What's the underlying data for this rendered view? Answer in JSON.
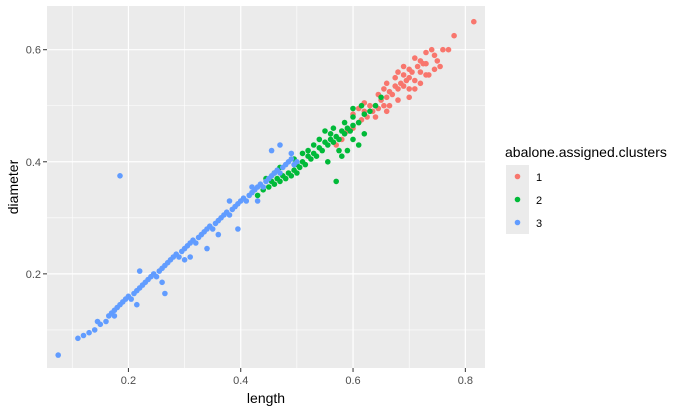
{
  "chart_data": {
    "type": "scatter",
    "title": "",
    "xlabel": "length",
    "ylabel": "diameter",
    "xlim": [
      0.055,
      0.835
    ],
    "ylim": [
      0.032,
      0.678
    ],
    "x_ticks": [
      0.2,
      0.4,
      0.6,
      0.8
    ],
    "x_tick_labels": [
      "0.2",
      "0.4",
      "0.6",
      "0.8"
    ],
    "y_ticks": [
      0.2,
      0.4,
      0.6
    ],
    "y_tick_labels": [
      "0.2",
      "0.4",
      "0.6"
    ],
    "grid": true,
    "panel_background": "#ebebeb",
    "legend": {
      "title": "abalone.assigned.clusters",
      "position": "right",
      "entries": [
        {
          "label": "1",
          "color": "#f8766d"
        },
        {
          "label": "2",
          "color": "#00ba38"
        },
        {
          "label": "3",
          "color": "#619cff"
        }
      ]
    },
    "series": [
      {
        "name": "1",
        "color": "#f8766d",
        "points": [
          [
            0.815,
            0.65
          ],
          [
            0.78,
            0.625
          ],
          [
            0.77,
            0.6
          ],
          [
            0.745,
            0.59
          ],
          [
            0.745,
            0.565
          ],
          [
            0.73,
            0.575
          ],
          [
            0.73,
            0.555
          ],
          [
            0.72,
            0.58
          ],
          [
            0.72,
            0.56
          ],
          [
            0.715,
            0.57
          ],
          [
            0.71,
            0.545
          ],
          [
            0.705,
            0.56
          ],
          [
            0.7,
            0.55
          ],
          [
            0.7,
            0.53
          ],
          [
            0.695,
            0.545
          ],
          [
            0.69,
            0.555
          ],
          [
            0.69,
            0.535
          ],
          [
            0.685,
            0.54
          ],
          [
            0.68,
            0.53
          ],
          [
            0.68,
            0.51
          ],
          [
            0.675,
            0.535
          ],
          [
            0.67,
            0.52
          ],
          [
            0.665,
            0.525
          ],
          [
            0.665,
            0.5
          ],
          [
            0.66,
            0.515
          ],
          [
            0.655,
            0.5
          ],
          [
            0.65,
            0.51
          ],
          [
            0.645,
            0.495
          ],
          [
            0.64,
            0.5
          ],
          [
            0.64,
            0.48
          ],
          [
            0.635,
            0.49
          ],
          [
            0.63,
            0.5
          ],
          [
            0.625,
            0.48
          ],
          [
            0.62,
            0.49
          ],
          [
            0.615,
            0.475
          ],
          [
            0.61,
            0.47
          ],
          [
            0.6,
            0.46
          ],
          [
            0.6,
            0.485
          ],
          [
            0.59,
            0.455
          ],
          [
            0.58,
            0.44
          ],
          [
            0.57,
            0.43
          ],
          [
            0.73,
            0.595
          ],
          [
            0.75,
            0.58
          ],
          [
            0.76,
            0.6
          ],
          [
            0.74,
            0.6
          ],
          [
            0.71,
            0.585
          ],
          [
            0.69,
            0.57
          ],
          [
            0.675,
            0.55
          ],
          [
            0.66,
            0.54
          ],
          [
            0.655,
            0.53
          ],
          [
            0.7,
            0.515
          ],
          [
            0.72,
            0.54
          ],
          [
            0.735,
            0.555
          ],
          [
            0.755,
            0.57
          ],
          [
            0.68,
            0.56
          ],
          [
            0.645,
            0.52
          ],
          [
            0.62,
            0.505
          ],
          [
            0.61,
            0.495
          ],
          [
            0.66,
            0.49
          ],
          [
            0.71,
            0.53
          ],
          [
            0.725,
            0.575
          ],
          [
            0.7,
            0.565
          ]
        ]
      },
      {
        "name": "2",
        "color": "#00ba38",
        "points": [
          [
            0.65,
            0.515
          ],
          [
            0.64,
            0.5
          ],
          [
            0.63,
            0.49
          ],
          [
            0.62,
            0.485
          ],
          [
            0.61,
            0.47
          ],
          [
            0.6,
            0.465
          ],
          [
            0.6,
            0.48
          ],
          [
            0.595,
            0.455
          ],
          [
            0.59,
            0.46
          ],
          [
            0.585,
            0.45
          ],
          [
            0.58,
            0.455
          ],
          [
            0.575,
            0.44
          ],
          [
            0.57,
            0.445
          ],
          [
            0.565,
            0.435
          ],
          [
            0.56,
            0.44
          ],
          [
            0.555,
            0.43
          ],
          [
            0.55,
            0.435
          ],
          [
            0.545,
            0.42
          ],
          [
            0.54,
            0.425
          ],
          [
            0.535,
            0.41
          ],
          [
            0.53,
            0.415
          ],
          [
            0.525,
            0.405
          ],
          [
            0.52,
            0.41
          ],
          [
            0.515,
            0.395
          ],
          [
            0.51,
            0.4
          ],
          [
            0.505,
            0.39
          ],
          [
            0.5,
            0.395
          ],
          [
            0.5,
            0.38
          ],
          [
            0.495,
            0.385
          ],
          [
            0.49,
            0.375
          ],
          [
            0.485,
            0.38
          ],
          [
            0.48,
            0.37
          ],
          [
            0.475,
            0.375
          ],
          [
            0.47,
            0.365
          ],
          [
            0.465,
            0.37
          ],
          [
            0.46,
            0.36
          ],
          [
            0.455,
            0.365
          ],
          [
            0.45,
            0.355
          ],
          [
            0.44,
            0.35
          ],
          [
            0.43,
            0.34
          ],
          [
            0.57,
            0.365
          ],
          [
            0.59,
            0.42
          ],
          [
            0.58,
            0.41
          ],
          [
            0.56,
            0.45
          ],
          [
            0.55,
            0.455
          ],
          [
            0.6,
            0.44
          ],
          [
            0.61,
            0.43
          ],
          [
            0.62,
            0.45
          ],
          [
            0.53,
            0.43
          ],
          [
            0.52,
            0.42
          ],
          [
            0.54,
            0.44
          ],
          [
            0.51,
            0.415
          ],
          [
            0.555,
            0.4
          ],
          [
            0.575,
            0.42
          ],
          [
            0.565,
            0.46
          ],
          [
            0.585,
            0.47
          ],
          [
            0.6,
            0.495
          ],
          [
            0.615,
            0.5
          ],
          [
            0.47,
            0.39
          ],
          [
            0.46,
            0.38
          ],
          [
            0.445,
            0.37
          ],
          [
            0.495,
            0.405
          ]
        ]
      },
      {
        "name": "3",
        "color": "#619cff",
        "points": [
          [
            0.075,
            0.055
          ],
          [
            0.11,
            0.085
          ],
          [
            0.13,
            0.095
          ],
          [
            0.14,
            0.1
          ],
          [
            0.15,
            0.11
          ],
          [
            0.16,
            0.115
          ],
          [
            0.165,
            0.125
          ],
          [
            0.17,
            0.13
          ],
          [
            0.175,
            0.135
          ],
          [
            0.18,
            0.14
          ],
          [
            0.185,
            0.145
          ],
          [
            0.19,
            0.15
          ],
          [
            0.195,
            0.155
          ],
          [
            0.2,
            0.16
          ],
          [
            0.205,
            0.155
          ],
          [
            0.21,
            0.165
          ],
          [
            0.215,
            0.17
          ],
          [
            0.22,
            0.175
          ],
          [
            0.225,
            0.18
          ],
          [
            0.23,
            0.185
          ],
          [
            0.235,
            0.19
          ],
          [
            0.24,
            0.195
          ],
          [
            0.245,
            0.2
          ],
          [
            0.25,
            0.195
          ],
          [
            0.255,
            0.205
          ],
          [
            0.26,
            0.21
          ],
          [
            0.265,
            0.215
          ],
          [
            0.27,
            0.22
          ],
          [
            0.275,
            0.225
          ],
          [
            0.28,
            0.23
          ],
          [
            0.285,
            0.235
          ],
          [
            0.29,
            0.23
          ],
          [
            0.295,
            0.24
          ],
          [
            0.3,
            0.245
          ],
          [
            0.305,
            0.25
          ],
          [
            0.31,
            0.255
          ],
          [
            0.315,
            0.26
          ],
          [
            0.32,
            0.255
          ],
          [
            0.325,
            0.265
          ],
          [
            0.33,
            0.27
          ],
          [
            0.335,
            0.275
          ],
          [
            0.34,
            0.28
          ],
          [
            0.345,
            0.285
          ],
          [
            0.35,
            0.28
          ],
          [
            0.355,
            0.29
          ],
          [
            0.36,
            0.295
          ],
          [
            0.365,
            0.3
          ],
          [
            0.37,
            0.305
          ],
          [
            0.375,
            0.31
          ],
          [
            0.38,
            0.305
          ],
          [
            0.385,
            0.315
          ],
          [
            0.39,
            0.32
          ],
          [
            0.395,
            0.325
          ],
          [
            0.4,
            0.33
          ],
          [
            0.405,
            0.335
          ],
          [
            0.41,
            0.33
          ],
          [
            0.415,
            0.34
          ],
          [
            0.42,
            0.345
          ],
          [
            0.425,
            0.35
          ],
          [
            0.43,
            0.355
          ],
          [
            0.435,
            0.36
          ],
          [
            0.44,
            0.355
          ],
          [
            0.445,
            0.365
          ],
          [
            0.45,
            0.37
          ],
          [
            0.455,
            0.375
          ],
          [
            0.46,
            0.38
          ],
          [
            0.465,
            0.385
          ],
          [
            0.47,
            0.38
          ],
          [
            0.475,
            0.39
          ],
          [
            0.48,
            0.395
          ],
          [
            0.485,
            0.4
          ],
          [
            0.49,
            0.405
          ],
          [
            0.495,
            0.395
          ],
          [
            0.5,
            0.4
          ],
          [
            0.185,
            0.375
          ],
          [
            0.215,
            0.145
          ],
          [
            0.265,
            0.165
          ],
          [
            0.22,
            0.205
          ],
          [
            0.34,
            0.245
          ],
          [
            0.395,
            0.28
          ],
          [
            0.455,
            0.42
          ],
          [
            0.47,
            0.43
          ],
          [
            0.3,
            0.225
          ],
          [
            0.26,
            0.185
          ],
          [
            0.38,
            0.33
          ],
          [
            0.42,
            0.355
          ],
          [
            0.43,
            0.33
          ],
          [
            0.36,
            0.27
          ],
          [
            0.31,
            0.23
          ],
          [
            0.12,
            0.09
          ],
          [
            0.145,
            0.115
          ],
          [
            0.175,
            0.125
          ],
          [
            0.49,
            0.415
          ]
        ]
      }
    ]
  }
}
